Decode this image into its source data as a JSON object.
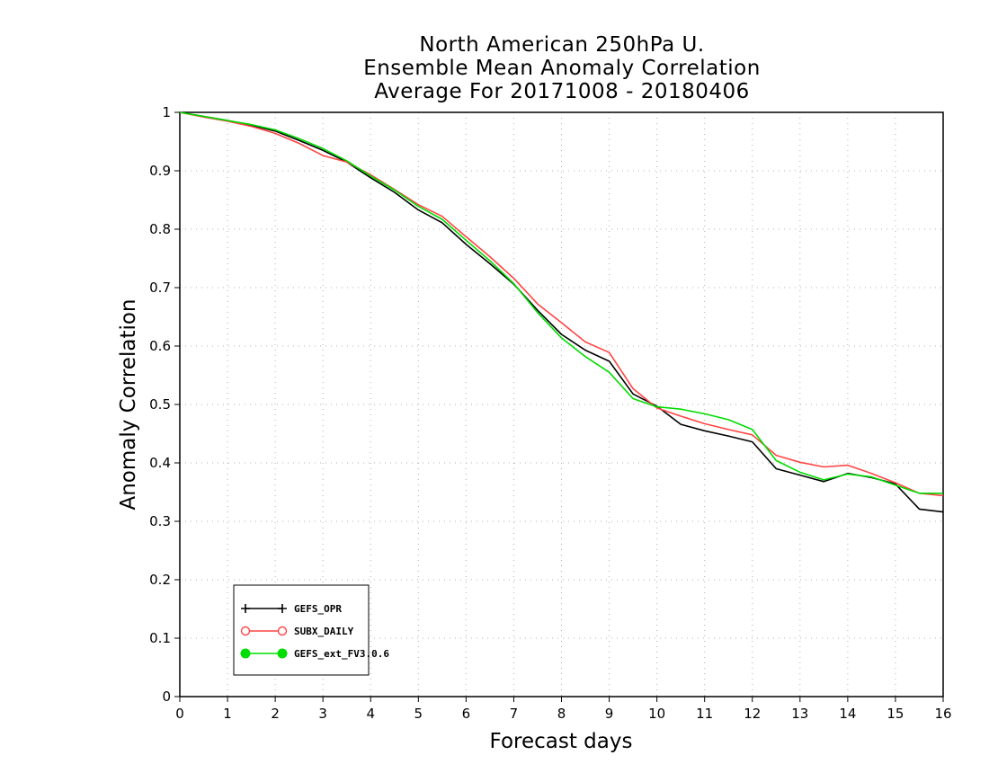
{
  "chart_data": {
    "type": "line",
    "title": [
      "North American 250hPa U.",
      "Ensemble Mean Anomaly Correlation",
      "Average For 20171008 - 20180406"
    ],
    "xlabel": "Forecast days",
    "ylabel": "Anomaly Correlation",
    "xlim": [
      0,
      16
    ],
    "ylim": [
      0,
      1
    ],
    "x_ticks": [
      "0",
      "1",
      "2",
      "3",
      "4",
      "5",
      "6",
      "7",
      "8",
      "9",
      "10",
      "11",
      "12",
      "13",
      "14",
      "15",
      "16"
    ],
    "y_ticks": [
      "0",
      "0.1",
      "0.2",
      "0.3",
      "0.4",
      "0.5",
      "0.6",
      "0.7",
      "0.8",
      "0.9",
      "1"
    ],
    "grid": true,
    "legend_position": "bottom-left",
    "x": [
      0,
      0.5,
      1,
      1.5,
      2,
      2.5,
      3,
      3.5,
      4,
      4.5,
      5,
      5.5,
      6,
      6.5,
      7,
      7.5,
      8,
      8.5,
      9,
      9.5,
      10,
      10.5,
      11,
      11.5,
      12,
      12.5,
      13,
      13.5,
      14,
      14.5,
      15,
      15.5,
      16
    ],
    "series": [
      {
        "name": "GEFS_OPR",
        "color": "#000000",
        "marker": "plus",
        "values": [
          1.0,
          0.993,
          0.986,
          0.978,
          0.968,
          0.952,
          0.935,
          0.915,
          0.888,
          0.863,
          0.833,
          0.811,
          0.774,
          0.741,
          0.706,
          0.661,
          0.62,
          0.593,
          0.574,
          0.518,
          0.497,
          0.466,
          0.455,
          0.446,
          0.436,
          0.39,
          0.379,
          0.368,
          0.382,
          0.375,
          0.364,
          0.321,
          0.316
        ]
      },
      {
        "name": "SUBX_DAILY",
        "color": "#ff4444",
        "marker": "open-circle",
        "values": [
          1.0,
          0.992,
          0.985,
          0.976,
          0.964,
          0.947,
          0.926,
          0.915,
          0.893,
          0.868,
          0.842,
          0.822,
          0.787,
          0.753,
          0.716,
          0.672,
          0.64,
          0.607,
          0.589,
          0.527,
          0.494,
          0.48,
          0.467,
          0.457,
          0.448,
          0.413,
          0.401,
          0.393,
          0.396,
          0.382,
          0.366,
          0.348,
          0.344
        ]
      },
      {
        "name": "GEFS_ext_FV3.0.6",
        "color": "#00dd00",
        "marker": "filled-circle",
        "values": [
          1.0,
          0.993,
          0.986,
          0.979,
          0.97,
          0.955,
          0.938,
          0.917,
          0.891,
          0.867,
          0.839,
          0.817,
          0.781,
          0.746,
          0.707,
          0.657,
          0.614,
          0.582,
          0.555,
          0.51,
          0.496,
          0.492,
          0.484,
          0.474,
          0.457,
          0.404,
          0.384,
          0.371,
          0.381,
          0.376,
          0.362,
          0.348,
          0.348
        ]
      }
    ]
  }
}
